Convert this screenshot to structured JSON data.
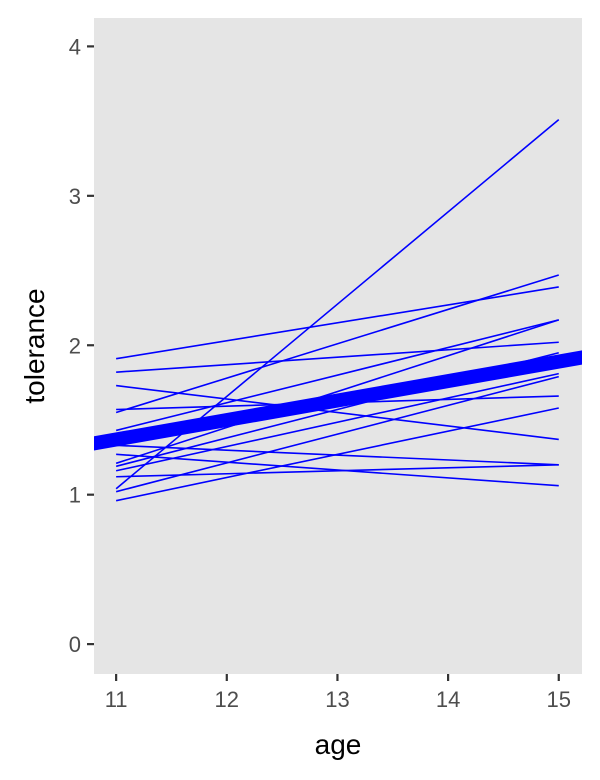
{
  "chart_data": {
    "type": "line",
    "xlabel": "age",
    "ylabel": "tolerance",
    "xlim": [
      10.8,
      15.21
    ],
    "ylim": [
      -0.2,
      4.19
    ],
    "x_ticks": [
      11,
      12,
      13,
      14,
      15
    ],
    "y_ticks": [
      0,
      1,
      2,
      3,
      4
    ],
    "grid": false,
    "panel_color": "#E5E5E5",
    "line_color": "#0000FF",
    "series": [
      {
        "x": [
          11,
          15
        ],
        "y": [
          1.91,
          2.39
        ]
      },
      {
        "x": [
          11,
          15
        ],
        "y": [
          1.82,
          2.02
        ]
      },
      {
        "x": [
          11,
          15
        ],
        "y": [
          1.73,
          1.37
        ]
      },
      {
        "x": [
          11,
          15
        ],
        "y": [
          1.57,
          1.66
        ]
      },
      {
        "x": [
          11,
          15
        ],
        "y": [
          1.55,
          2.47
        ]
      },
      {
        "x": [
          11,
          15
        ],
        "y": [
          1.43,
          2.17
        ]
      },
      {
        "x": [
          11,
          15
        ],
        "y": [
          1.33,
          1.2
        ]
      },
      {
        "x": [
          11,
          15
        ],
        "y": [
          1.27,
          1.06
        ]
      },
      {
        "x": [
          11,
          15
        ],
        "y": [
          1.21,
          2.17
        ]
      },
      {
        "x": [
          11,
          15
        ],
        "y": [
          1.19,
          1.95
        ]
      },
      {
        "x": [
          11,
          15
        ],
        "y": [
          1.16,
          1.81
        ]
      },
      {
        "x": [
          11,
          15
        ],
        "y": [
          1.12,
          1.2
        ]
      },
      {
        "x": [
          11,
          15
        ],
        "y": [
          1.04,
          3.51
        ]
      },
      {
        "x": [
          11,
          15
        ],
        "y": [
          1.02,
          1.79
        ]
      },
      {
        "x": [
          11,
          15
        ],
        "y": [
          0.96,
          1.58
        ]
      }
    ],
    "mean_line": {
      "intercept_at_11": 1.37,
      "slope": 0.13
    }
  }
}
